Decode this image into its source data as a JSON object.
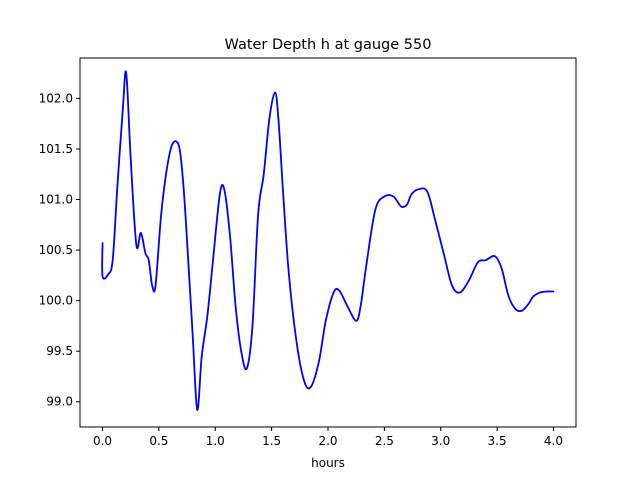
{
  "chart_data": {
    "type": "line",
    "title": "Water Depth h at gauge 550",
    "xlabel": "hours",
    "ylabel": "",
    "xlim": [
      -0.2,
      4.2
    ],
    "ylim": [
      98.75,
      102.4
    ],
    "xticks": [
      0.0,
      0.5,
      1.0,
      1.5,
      2.0,
      2.5,
      3.0,
      3.5,
      4.0
    ],
    "xtick_labels": [
      "0.0",
      "0.5",
      "1.0",
      "1.5",
      "2.0",
      "2.5",
      "3.0",
      "3.5",
      "4.0"
    ],
    "yticks": [
      99.0,
      99.5,
      100.0,
      100.5,
      101.0,
      101.5,
      102.0
    ],
    "ytick_labels": [
      "99.0",
      "99.5",
      "100.0",
      "100.5",
      "101.0",
      "101.5",
      "102.0"
    ],
    "grid": false,
    "series": [
      {
        "color": "#0000ff",
        "x": [
          0.0,
          0.0,
          0.05,
          0.09,
          0.13,
          0.18,
          0.21,
          0.25,
          0.3,
          0.34,
          0.38,
          0.41,
          0.44,
          0.47,
          0.52,
          0.57,
          0.62,
          0.68,
          0.72,
          0.76,
          0.8,
          0.84,
          0.88,
          0.93,
          0.98,
          1.04,
          1.08,
          1.13,
          1.18,
          1.23,
          1.28,
          1.33,
          1.38,
          1.43,
          1.48,
          1.53,
          1.56,
          1.6,
          1.65,
          1.72,
          1.79,
          1.85,
          1.92,
          1.98,
          2.05,
          2.1,
          2.17,
          2.25,
          2.29,
          2.34,
          2.42,
          2.5,
          2.58,
          2.65,
          2.7,
          2.74,
          2.8,
          2.88,
          2.95,
          3.03,
          3.1,
          3.17,
          3.25,
          3.33,
          3.4,
          3.48,
          3.54,
          3.6,
          3.66,
          3.72,
          3.78,
          3.82,
          3.88,
          3.94,
          4.0
        ],
        "y": [
          100.57,
          100.24,
          100.26,
          100.4,
          101.1,
          101.9,
          102.25,
          101.4,
          100.55,
          100.67,
          100.47,
          100.4,
          100.15,
          100.15,
          100.85,
          101.3,
          101.55,
          101.52,
          101.1,
          100.4,
          99.65,
          98.92,
          99.45,
          99.85,
          100.4,
          101.05,
          101.1,
          100.65,
          99.95,
          99.5,
          99.33,
          99.75,
          100.85,
          101.25,
          101.8,
          102.06,
          101.8,
          101.1,
          100.3,
          99.6,
          99.2,
          99.15,
          99.4,
          99.8,
          100.08,
          100.1,
          99.95,
          99.8,
          99.95,
          100.35,
          100.9,
          101.03,
          101.03,
          100.93,
          100.95,
          101.05,
          101.1,
          101.08,
          100.8,
          100.45,
          100.15,
          100.08,
          100.2,
          100.38,
          100.4,
          100.44,
          100.32,
          100.05,
          99.92,
          99.9,
          99.97,
          100.04,
          100.08,
          100.09,
          100.09
        ]
      }
    ]
  }
}
